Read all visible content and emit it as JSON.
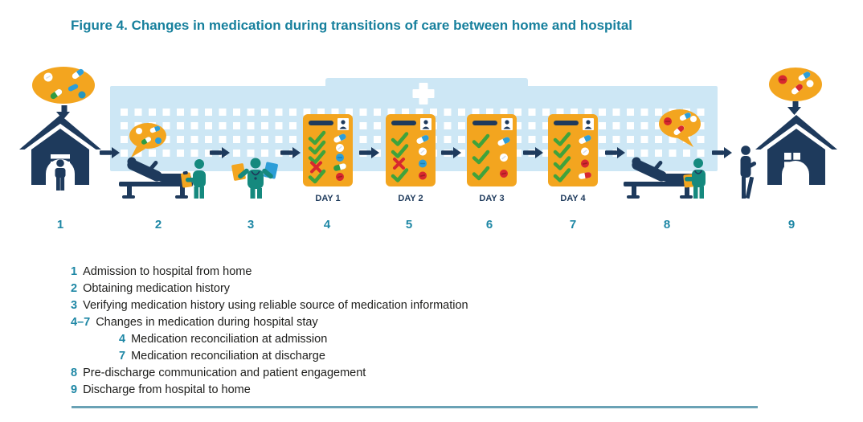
{
  "figure": {
    "title": "Figure 4. Changes in medication during transitions of care between home and hospital"
  },
  "diagram": {
    "step_numbers": [
      "1",
      "2",
      "3",
      "4",
      "5",
      "6",
      "7",
      "8",
      "9"
    ],
    "medication_charts": [
      {
        "label": "DAY 1",
        "rows": [
          {
            "mark": "check",
            "med": "capsule-blue"
          },
          {
            "mark": "check",
            "med": "tablet-white"
          },
          {
            "mark": "check",
            "med": "tablet-blue"
          },
          {
            "mark": "cross",
            "med": "capsule-green"
          },
          {
            "mark": "check",
            "med": "tablet-red"
          }
        ]
      },
      {
        "label": "DAY 2",
        "rows": [
          {
            "mark": "check",
            "med": "capsule-blue"
          },
          {
            "mark": "check",
            "med": "tablet-white"
          },
          {
            "mark": "cross",
            "med": "tablet-blue"
          },
          {
            "mark": "check",
            "med": "tablet-red"
          }
        ]
      },
      {
        "label": "DAY 3",
        "rows": [
          {
            "mark": "check",
            "med": "capsule-blue"
          },
          {
            "mark": "check",
            "med": "tablet-white"
          },
          {
            "mark": "check",
            "med": "tablet-red"
          }
        ]
      },
      {
        "label": "DAY 4",
        "rows": [
          {
            "mark": "check",
            "med": "capsule-blue"
          },
          {
            "mark": "check",
            "med": "tablet-white"
          },
          {
            "mark": "check",
            "med": "tablet-red"
          },
          {
            "mark": "check",
            "med": "capsule-red"
          }
        ]
      }
    ]
  },
  "legend": {
    "items": [
      {
        "number": "1",
        "text": "Admission to hospital from home",
        "indent": 0
      },
      {
        "number": "2",
        "text": "Obtaining medication history",
        "indent": 0
      },
      {
        "number": "3",
        "text": "Verifying medication history using reliable source of medication information",
        "indent": 0
      },
      {
        "number": "4–7",
        "text": "Changes in medication during hospital stay",
        "indent": 0
      },
      {
        "number": "4",
        "text": "Medication reconciliation at admission",
        "indent": 1
      },
      {
        "number": "7",
        "text": "Medication reconciliation at discharge",
        "indent": 1
      },
      {
        "number": "8",
        "text": "Pre-discharge communication and patient engagement",
        "indent": 0
      },
      {
        "number": "9",
        "text": "Discharge from hospital to home",
        "indent": 0
      }
    ]
  },
  "colors": {
    "title_teal": "#17809d",
    "step_number_teal": "#1e87a5",
    "navy": "#1e3a5c",
    "chart_orange": "#f3a51f",
    "clinician_teal": "#15897e",
    "hospital_blue": "#cde7f5",
    "check_green": "#3fa33c",
    "cross_red": "#d7282f",
    "pill_blue": "#2d9ed8",
    "pill_red": "#d7282f",
    "pill_green": "#2e9b43",
    "rule_teal": "#6aa2b5",
    "text_dark": "#1d1d1b"
  }
}
